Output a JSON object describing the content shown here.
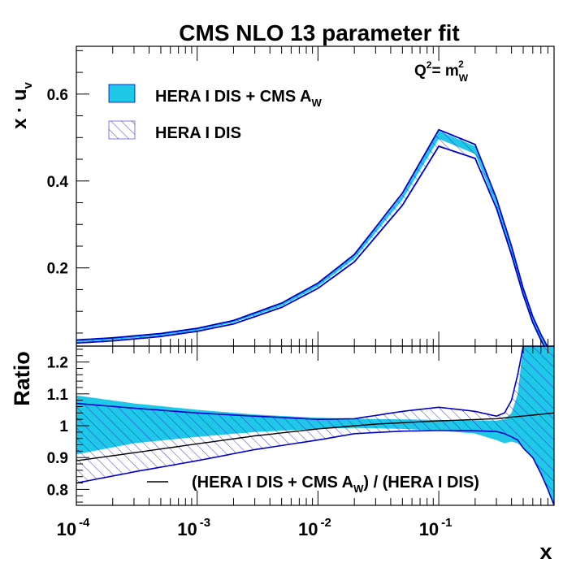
{
  "chart_data": {
    "type": "area",
    "title": "CMS NLO 13 parameter fit",
    "scale_label": {
      "q": "Q",
      "q_sup": "2",
      "eq": "= m",
      "m_sub": "W",
      "m_sup": "2"
    },
    "colors": {
      "band_fill": "#1ec8e6",
      "band_edge": "#0000cc",
      "hatch": "#2a2ad0",
      "ratio_line": "#000000",
      "axis": "#000000"
    },
    "x_axis": {
      "label": "x",
      "scale": "log",
      "range": [
        0.0001,
        0.9
      ],
      "ticks": [
        {
          "value": 0.0001,
          "base": "10",
          "exp": "-4"
        },
        {
          "value": 0.001,
          "base": "10",
          "exp": "-3"
        },
        {
          "value": 0.01,
          "base": "10",
          "exp": "-2"
        },
        {
          "value": 0.1,
          "base": "10",
          "exp": "-1"
        }
      ]
    },
    "top": {
      "ylabel": {
        "main": "x · u",
        "sub": "v"
      },
      "ylim": [
        0.02,
        0.71
      ],
      "yticks": [
        "0.2",
        "0.4",
        "0.6"
      ],
      "legend": [
        {
          "label": "HERA I DIS + CMS A",
          "sub": "W",
          "style": "filled"
        },
        {
          "label": "HERA I DIS",
          "sub": "",
          "style": "hatched"
        }
      ],
      "series": [
        {
          "name": "HERA I DIS + CMS A_W",
          "x": [
            0.0001,
            0.0002,
            0.0005,
            0.001,
            0.002,
            0.005,
            0.01,
            0.02,
            0.05,
            0.1,
            0.2,
            0.3,
            0.4,
            0.5,
            0.6,
            0.7,
            0.8,
            0.9
          ],
          "center": [
            0.031,
            0.036,
            0.046,
            0.058,
            0.076,
            0.115,
            0.16,
            0.225,
            0.362,
            0.505,
            0.47,
            0.35,
            0.24,
            0.145,
            0.08,
            0.04,
            0.01,
            0.0
          ],
          "upper": [
            0.033,
            0.038,
            0.048,
            0.06,
            0.078,
            0.118,
            0.164,
            0.229,
            0.368,
            0.515,
            0.48,
            0.356,
            0.246,
            0.151,
            0.086,
            0.046,
            0.016,
            0.004
          ],
          "lower": [
            0.029,
            0.034,
            0.044,
            0.056,
            0.074,
            0.112,
            0.157,
            0.221,
            0.357,
            0.497,
            0.462,
            0.342,
            0.234,
            0.139,
            0.074,
            0.034,
            0.004,
            0.0
          ]
        },
        {
          "name": "HERA I DIS",
          "x": [
            0.0001,
            0.0002,
            0.0005,
            0.001,
            0.002,
            0.005,
            0.01,
            0.02,
            0.05,
            0.1,
            0.2,
            0.3,
            0.4,
            0.5,
            0.6,
            0.7,
            0.8,
            0.9
          ],
          "upper": [
            0.034,
            0.039,
            0.049,
            0.061,
            0.079,
            0.119,
            0.165,
            0.231,
            0.372,
            0.518,
            0.484,
            0.36,
            0.25,
            0.153,
            0.088,
            0.047,
            0.017,
            0.005
          ],
          "lower": [
            0.027,
            0.032,
            0.042,
            0.054,
            0.071,
            0.109,
            0.153,
            0.214,
            0.344,
            0.48,
            0.452,
            0.337,
            0.23,
            0.138,
            0.074,
            0.034,
            0.004,
            0.0
          ]
        }
      ]
    },
    "bottom": {
      "ylabel": "Ratio",
      "ylim": [
        0.75,
        1.25
      ],
      "yticks": [
        "0.8",
        "0.9",
        "1",
        "1.1",
        "1.2"
      ],
      "legend": {
        "text": "(HERA I DIS + CMS A",
        "sub": "W",
        "tail": ") / (HERA I DIS)"
      },
      "ratio_line": {
        "x": [
          0.0001,
          0.0003,
          0.001,
          0.003,
          0.01,
          0.03,
          0.1,
          0.3,
          0.9
        ],
        "y": [
          0.89,
          0.915,
          0.943,
          0.968,
          0.99,
          1.005,
          1.015,
          1.022,
          1.04
        ]
      },
      "filled_band": {
        "x": [
          0.0001,
          0.0003,
          0.001,
          0.003,
          0.01,
          0.02,
          0.05,
          0.1,
          0.2,
          0.3,
          0.35,
          0.4,
          0.45,
          0.5,
          0.6,
          0.7,
          0.8,
          0.9
        ],
        "upper": [
          1.095,
          1.07,
          1.05,
          1.035,
          1.025,
          1.022,
          1.02,
          1.018,
          1.017,
          1.016,
          1.02,
          1.04,
          1.1,
          1.25,
          1.25,
          1.25,
          1.25,
          1.25
        ],
        "lower": [
          0.91,
          0.945,
          0.965,
          0.98,
          0.99,
          0.993,
          0.99,
          0.985,
          0.975,
          0.955,
          0.945,
          0.95,
          0.945,
          0.93,
          0.9,
          0.85,
          0.8,
          0.75
        ]
      },
      "hatched_band": {
        "x": [
          0.0001,
          0.0003,
          0.001,
          0.003,
          0.01,
          0.02,
          0.05,
          0.1,
          0.2,
          0.3,
          0.35,
          0.4,
          0.45,
          0.5,
          0.6,
          0.7,
          0.8,
          0.9
        ],
        "upper": [
          1.07,
          1.055,
          1.04,
          1.03,
          1.02,
          1.022,
          1.045,
          1.058,
          1.045,
          1.03,
          1.04,
          1.08,
          1.16,
          1.25,
          1.25,
          1.25,
          1.25,
          1.25
        ],
        "lower": [
          0.82,
          0.855,
          0.89,
          0.925,
          0.955,
          0.975,
          0.983,
          0.985,
          0.984,
          0.982,
          0.975,
          0.965,
          0.955,
          0.93,
          0.9,
          0.85,
          0.8,
          0.75
        ]
      }
    }
  }
}
